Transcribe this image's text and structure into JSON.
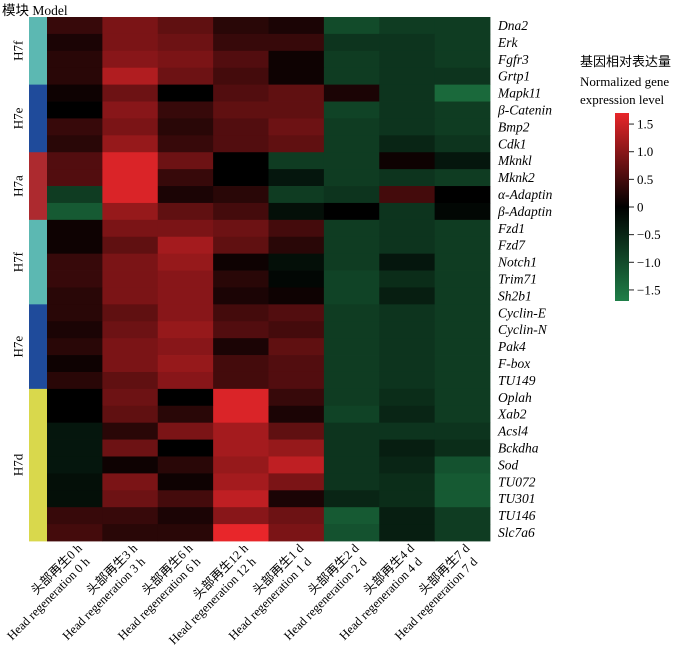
{
  "chart_data": {
    "type": "heatmap",
    "title": "模块 Model",
    "legend_title_cn": "基因相对表达量",
    "legend_title_en_1": "Normalized gene",
    "legend_title_en_2": "expression level",
    "colorbar_ticks": [
      1.5,
      1.0,
      0.5,
      0,
      -0.5,
      -1.0,
      -1.5
    ],
    "colorbar_labels": [
      "1.5",
      "1.0",
      "0.5",
      "0",
      "−0.5",
      "−1.0",
      "−1.5"
    ],
    "value_range": [
      -1.7,
      1.7
    ],
    "colors": {
      "high": "#e8262a",
      "mid": "#000000",
      "low": "#1f7f48"
    },
    "columns": [
      {
        "cn": "头部再生0 h",
        "en": "Head regeneration 0 h"
      },
      {
        "cn": "头部再生3 h",
        "en": "Head regeneration 3 h"
      },
      {
        "cn": "头部再生6 h",
        "en": "Head regeneration 6 h"
      },
      {
        "cn": "头部再生12 h",
        "en": "Head regeneration 12 h"
      },
      {
        "cn": "头部再生1 d",
        "en": "Head regeneration 1 d"
      },
      {
        "cn": "头部再生2 d",
        "en": "Head regeneration 2 d"
      },
      {
        "cn": "头部再生4 d",
        "en": "Head regeneration 4 d"
      },
      {
        "cn": "头部再生7 d",
        "en": "Head regeneration 7 d"
      }
    ],
    "modules": [
      {
        "name": "H7f",
        "color": "#5cb8b2",
        "rows": 4
      },
      {
        "name": "H7e",
        "color": "#1f4b9b",
        "rows": 4
      },
      {
        "name": "H7a",
        "color": "#ad2a2f",
        "rows": 4
      },
      {
        "name": "H7f",
        "color": "#5cb8b2",
        "rows": 5
      },
      {
        "name": "H7e",
        "color": "#1f4b9b",
        "rows": 5
      },
      {
        "name": "H7d",
        "color": "#d9d84c",
        "rows": 9
      }
    ],
    "genes": [
      "Dna2",
      "Erk",
      "Fgfr3",
      "Grtp1",
      "Mapk11",
      "β-Catenin",
      "Bmp2",
      "Cdk1",
      "Mknkl",
      "Mknk2",
      "α-Adaptin",
      "β-Adaptin",
      "Fzd1",
      "Fzd7",
      "Notch1",
      "Trim71",
      "Sh2b1",
      "Cyclin-E",
      "Cyclin-N",
      "Pak4",
      "F-box",
      "TU149",
      "Oplah",
      "Xab2",
      "Acsl4",
      "Bckdha",
      "Sod",
      "TU072",
      "TU301",
      "TU146",
      "Slc7a6"
    ],
    "values": [
      [
        0.4,
        0.9,
        0.7,
        0.3,
        0.2,
        -1.0,
        -0.8,
        -0.8
      ],
      [
        0.2,
        0.9,
        0.8,
        0.4,
        0.4,
        -0.7,
        -0.7,
        -0.8
      ],
      [
        0.3,
        1.0,
        0.9,
        0.6,
        0.1,
        -0.8,
        -0.7,
        -0.8
      ],
      [
        0.3,
        1.3,
        0.8,
        0.5,
        0.1,
        -0.8,
        -0.7,
        -0.7
      ],
      [
        0.1,
        0.8,
        0.0,
        0.6,
        0.7,
        0.2,
        -0.7,
        -1.4
      ],
      [
        0.0,
        1.0,
        0.4,
        0.7,
        0.7,
        -0.9,
        -0.7,
        -0.8
      ],
      [
        0.4,
        0.9,
        0.3,
        0.6,
        0.8,
        -0.8,
        -0.7,
        -0.8
      ],
      [
        0.3,
        1.1,
        0.4,
        0.6,
        0.7,
        -0.8,
        -0.5,
        -0.7
      ],
      [
        0.6,
        1.6,
        0.8,
        0.0,
        -0.8,
        -0.8,
        0.1,
        -0.3
      ],
      [
        0.6,
        1.6,
        0.4,
        0.0,
        -0.3,
        -0.8,
        -0.7,
        -0.8
      ],
      [
        -0.8,
        1.6,
        0.2,
        0.3,
        -0.8,
        -0.7,
        0.5,
        0.0
      ],
      [
        -1.2,
        1.1,
        0.7,
        0.5,
        -0.2,
        0.0,
        -0.7,
        -0.1
      ],
      [
        0.1,
        0.9,
        0.9,
        0.8,
        0.5,
        -0.8,
        -0.7,
        -0.8
      ],
      [
        0.1,
        0.7,
        1.2,
        0.7,
        0.3,
        -0.8,
        -0.7,
        -0.8
      ],
      [
        0.4,
        0.9,
        1.1,
        0.1,
        -0.2,
        -0.8,
        -0.3,
        -0.8
      ],
      [
        0.4,
        0.9,
        1.0,
        0.3,
        -0.1,
        -0.9,
        -0.6,
        -0.8
      ],
      [
        0.3,
        0.9,
        1.0,
        0.2,
        0.1,
        -0.9,
        -0.4,
        -0.8
      ],
      [
        0.3,
        0.7,
        1.0,
        0.5,
        0.6,
        -0.8,
        -0.7,
        -0.8
      ],
      [
        0.2,
        0.8,
        1.1,
        0.6,
        0.5,
        -0.8,
        -0.7,
        -0.8
      ],
      [
        0.3,
        0.9,
        1.0,
        0.2,
        0.7,
        -0.8,
        -0.7,
        -0.8
      ],
      [
        0.1,
        0.9,
        1.1,
        0.5,
        0.6,
        -0.8,
        -0.7,
        -0.8
      ],
      [
        0.3,
        0.7,
        1.0,
        0.5,
        0.6,
        -0.8,
        -0.7,
        -0.8
      ],
      [
        0.0,
        0.8,
        0.0,
        1.6,
        0.4,
        -0.8,
        -0.6,
        -0.8
      ],
      [
        0.0,
        0.7,
        0.3,
        1.6,
        0.2,
        -0.9,
        -0.5,
        -0.8
      ],
      [
        -0.3,
        0.3,
        0.9,
        1.2,
        0.7,
        -0.7,
        -0.7,
        -0.7
      ],
      [
        -0.3,
        0.8,
        0.0,
        1.2,
        1.1,
        -0.7,
        -0.4,
        -0.6
      ],
      [
        -0.3,
        0.1,
        0.3,
        1.1,
        1.4,
        -0.7,
        -0.5,
        -1.1
      ],
      [
        -0.2,
        0.9,
        0.1,
        1.2,
        0.9,
        -0.7,
        -0.6,
        -1.2
      ],
      [
        -0.2,
        0.8,
        0.5,
        1.4,
        0.2,
        -0.5,
        -0.6,
        -1.2
      ],
      [
        0.4,
        0.4,
        0.2,
        1.0,
        0.8,
        -1.2,
        -0.4,
        -0.8
      ],
      [
        0.5,
        0.3,
        0.3,
        1.7,
        0.9,
        -1.1,
        -0.4,
        -0.8
      ]
    ]
  }
}
